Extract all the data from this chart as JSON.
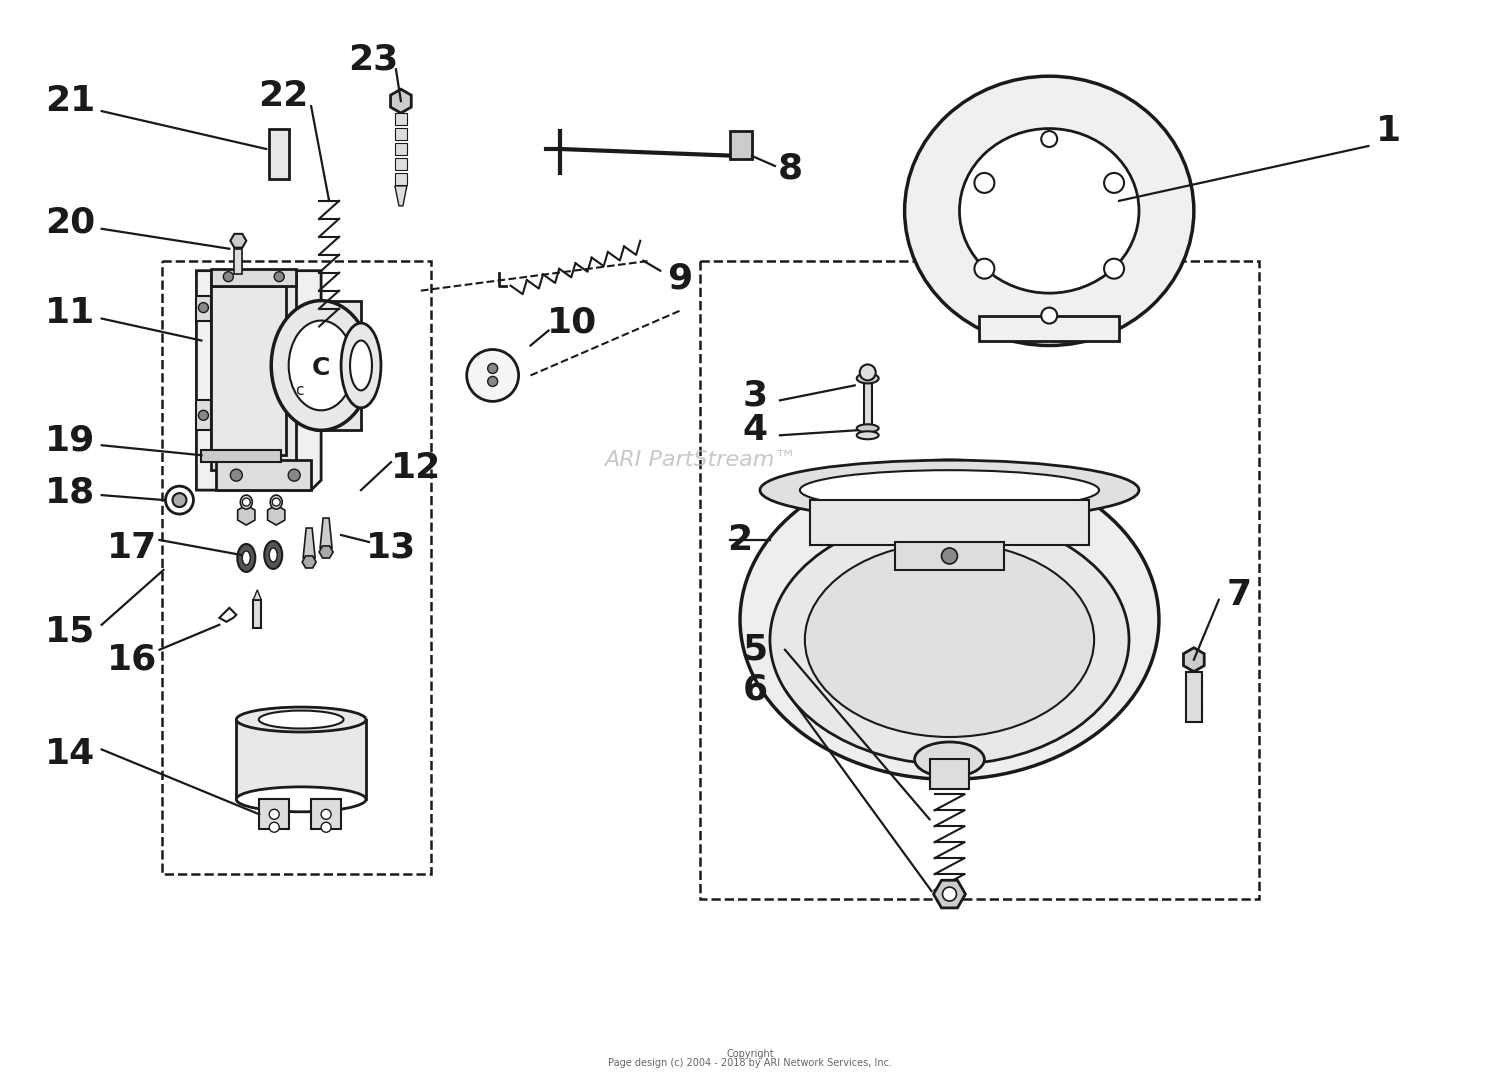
{
  "background_color": "#ffffff",
  "watermark_text": "ARI PartStream™",
  "watermark_color": "#bbbbbb",
  "watermark_fontsize": 16,
  "copyright_line1": "Copyright",
  "copyright_line2": "Page design (c) 2004 - 2018 by ARI Network Services, Inc.",
  "copyright_fontsize": 7,
  "lc": "#1a1a1a",
  "lw": 1.6,
  "label_fontsize": 26,
  "label_color": "#111111"
}
